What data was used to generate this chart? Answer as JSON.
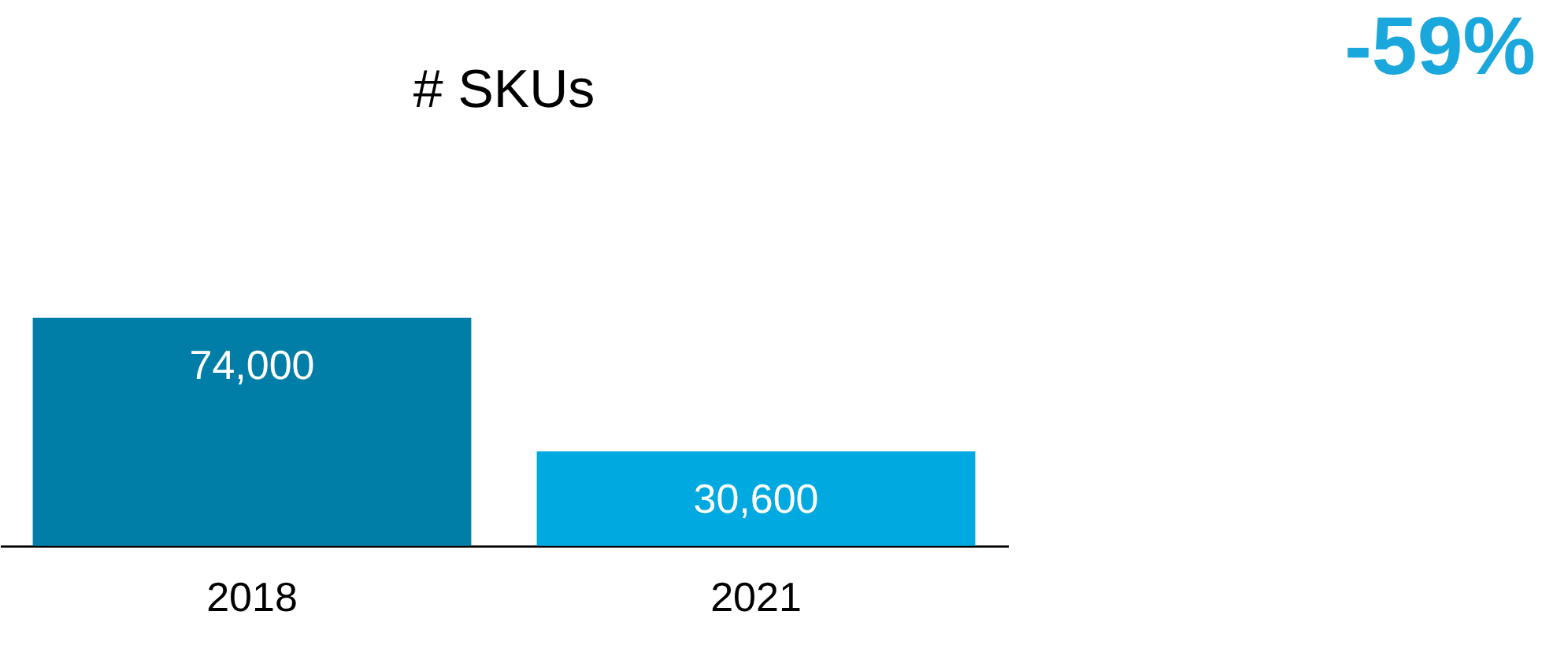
{
  "chart_data": {
    "type": "bar",
    "title": "# SKUs",
    "categories": [
      "2018",
      "2021"
    ],
    "values": [
      74000,
      30600
    ],
    "colors": [
      "#007ea7",
      "#00a9e0"
    ],
    "value_labels": [
      "74,000",
      "30,600"
    ],
    "annotations": [
      "-59%"
    ],
    "grid": false
  }
}
